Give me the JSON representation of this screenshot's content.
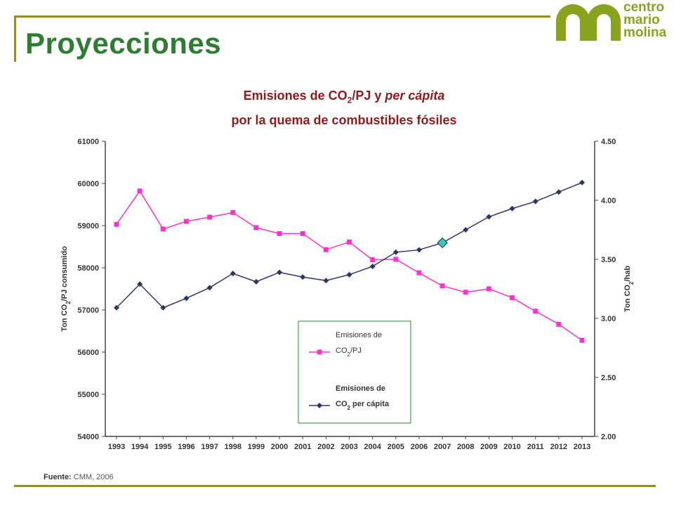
{
  "header": {
    "title": "Proyecciones",
    "logo_lines": [
      "centro",
      "mario",
      "molina"
    ]
  },
  "chart_heading": {
    "line1_a": "Emisiones de CO",
    "line1_sub": "2",
    "line1_b": "/PJ y ",
    "line1_c": "per cápita",
    "line2": "por la quema de combustibles fósiles"
  },
  "footer": {
    "source_label": "Fuente:",
    "source_value": "CMM, 2006"
  },
  "colors": {
    "title": "#2e7d32",
    "heading": "#8b1a1a",
    "series_pj": "#ff33cc",
    "series_capita": "#2e3566",
    "marker_highlight": "#3cc7c0",
    "frame": "#9a8a2a",
    "logo": "#8aa31e"
  },
  "chart_data": {
    "type": "line",
    "x": [
      "1993",
      "1994",
      "1995",
      "1996",
      "1997",
      "1998",
      "1999",
      "2000",
      "2001",
      "2002",
      "2003",
      "2004",
      "2005",
      "2006",
      "2007",
      "2008",
      "2009",
      "2010",
      "2011",
      "2012",
      "2013"
    ],
    "y_left": {
      "label": "Ton CO2/PJ consumido",
      "range": [
        54000,
        61000
      ],
      "ticks": [
        "54000",
        "55000",
        "56000",
        "57000",
        "58000",
        "59000",
        "60000",
        "61000"
      ]
    },
    "y_right": {
      "label": "Ton CO2/hab",
      "range": [
        2.0,
        4.5
      ],
      "ticks": [
        "2.00",
        "2.50",
        "3.00",
        "3.50",
        "4.00",
        "4.50"
      ]
    },
    "series": [
      {
        "name": "Emisiones de CO2/PJ",
        "axis": "left",
        "color": "#ff33cc",
        "marker": "square",
        "values": [
          59030,
          59820,
          58920,
          59100,
          59200,
          59310,
          58950,
          58810,
          58810,
          58430,
          58610,
          58190,
          58200,
          57880,
          57570,
          57420,
          57500,
          57290,
          56970,
          56660,
          56280
        ]
      },
      {
        "name": "Emisiones de CO2 per cápita",
        "axis": "right",
        "color": "#2e3566",
        "marker": "diamond",
        "values": [
          3.09,
          3.29,
          3.09,
          3.17,
          3.26,
          3.38,
          3.31,
          3.39,
          3.35,
          3.32,
          3.37,
          3.44,
          3.56,
          3.58,
          3.64,
          3.75,
          3.86,
          3.93,
          3.99,
          4.07,
          4.15
        ]
      }
    ],
    "highlight": {
      "series": 1,
      "x": "2007"
    },
    "legend": {
      "placement": "bottom-center",
      "entries": [
        {
          "line1": "Emisiones de",
          "line2a": "CO",
          "line2sub": "2",
          "line2b": "/PJ"
        },
        {
          "line1": "Emisiones de",
          "line2a": "CO",
          "line2sub": "2",
          "line2b": " per cápita"
        }
      ]
    },
    "grid": false
  }
}
